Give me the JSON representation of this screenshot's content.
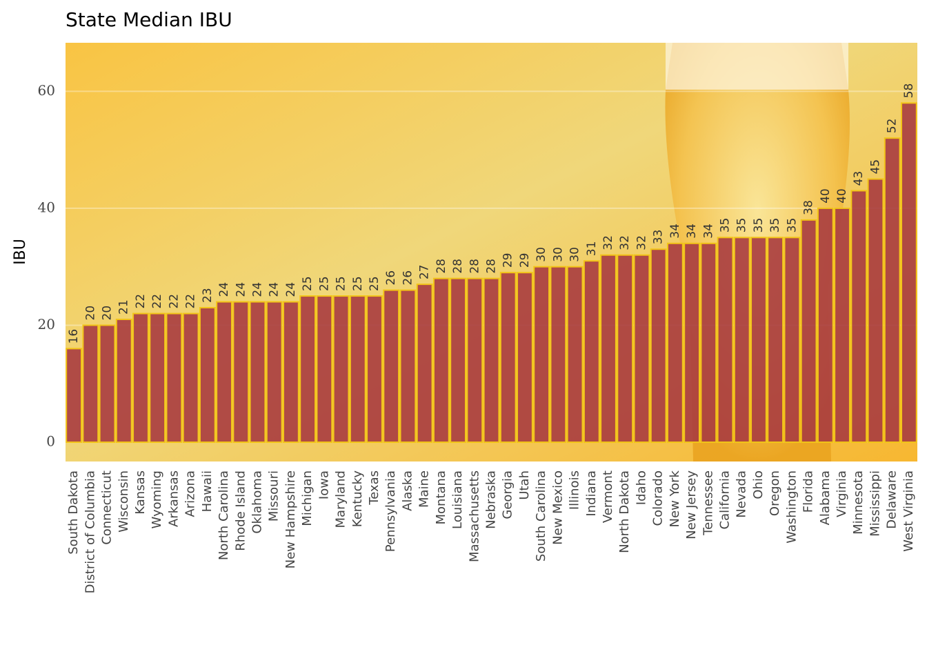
{
  "chart_data": {
    "type": "bar",
    "title": "State Median IBU",
    "y_label": "IBU",
    "categories": [
      "South Dakota",
      "District of Columbia",
      "Connecticut",
      "Wisconsin",
      "Kansas",
      "Wyoming",
      "Arkansas",
      "Arizona",
      "Hawaii",
      "North Carolina",
      "Rhode Island",
      "Oklahoma",
      "Missouri",
      "New Hampshire",
      "Michigan",
      "Iowa",
      "Maryland",
      "Kentucky",
      "Texas",
      "Pennsylvania",
      "Alaska",
      "Maine",
      "Montana",
      "Louisiana",
      "Massachusetts",
      "Nebraska",
      "Georgia",
      "Utah",
      "South Carolina",
      "New Mexico",
      "Illinois",
      "Indiana",
      "Vermont",
      "North Dakota",
      "Idaho",
      "Colorado",
      "New York",
      "New Jersey",
      "Tennessee",
      "California",
      "Nevada",
      "Ohio",
      "Oregon",
      "Washington",
      "Florida",
      "Alabama",
      "Virginia",
      "Minnesota",
      "Mississippi",
      "Delaware",
      "West Virginia"
    ],
    "values": [
      16,
      20,
      20,
      21,
      22,
      22,
      22,
      22,
      23,
      24,
      24,
      24,
      24,
      24,
      25,
      25,
      25,
      25,
      25,
      26,
      26,
      27,
      28,
      28,
      28,
      28,
      29,
      29,
      30,
      30,
      30,
      31,
      32,
      32,
      32,
      33,
      34,
      34,
      34,
      35,
      35,
      35,
      35,
      35,
      38,
      40,
      40,
      43,
      45,
      52,
      58
    ],
    "color": "#a83c40",
    "edge_color": "#f2c418",
    "ylim": [
      -3.3,
      68.3
    ],
    "yticks": [
      0,
      20,
      40,
      60
    ],
    "grid": true
  }
}
